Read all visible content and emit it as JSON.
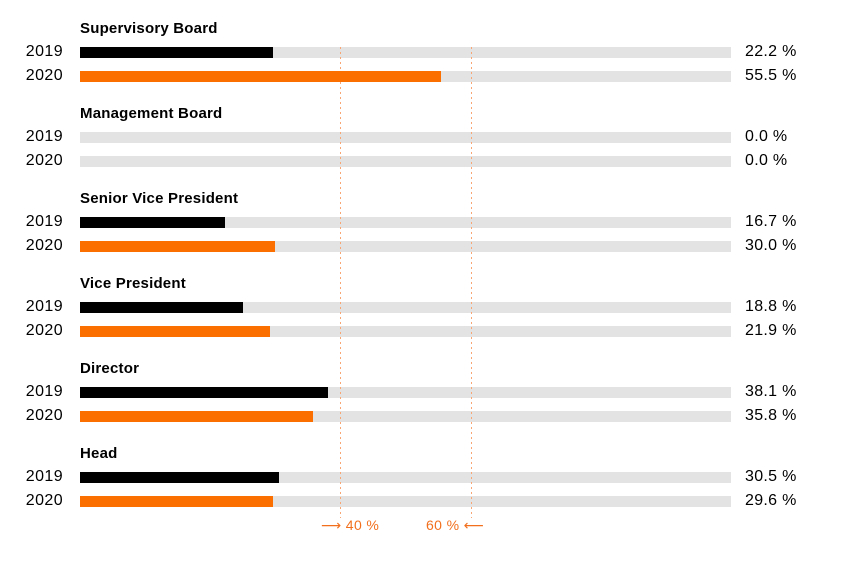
{
  "chart_data": {
    "type": "bar",
    "orientation": "horizontal",
    "title": "",
    "unit": "%",
    "xlim": [
      0,
      100
    ],
    "grid": false,
    "legend_position": "none",
    "categories": [
      "Supervisory Board",
      "Management Board",
      "Senior Vice President",
      "Vice President",
      "Director",
      "Head"
    ],
    "series": [
      {
        "name": "2019",
        "values": [
          22.2,
          0.0,
          16.7,
          18.8,
          38.1,
          30.5
        ]
      },
      {
        "name": "2020",
        "values": [
          55.5,
          0.0,
          30.0,
          21.9,
          35.8,
          29.6
        ]
      }
    ],
    "groups": [
      {
        "title": "Supervisory Board",
        "rows": [
          {
            "year": "2019",
            "value": 22.2,
            "display": "22.2 %",
            "bar_pct": 29.6
          },
          {
            "year": "2020",
            "value": 55.5,
            "display": "55.5 %",
            "bar_pct": 55.5
          }
        ]
      },
      {
        "title": "Management Board",
        "rows": [
          {
            "year": "2019",
            "value": 0.0,
            "display": "0.0 %",
            "bar_pct": 0
          },
          {
            "year": "2020",
            "value": 0.0,
            "display": "0.0 %",
            "bar_pct": 0
          }
        ]
      },
      {
        "title": "Senior Vice President",
        "rows": [
          {
            "year": "2019",
            "value": 16.7,
            "display": "16.7 %",
            "bar_pct": 22.3
          },
          {
            "year": "2020",
            "value": 30.0,
            "display": "30.0 %",
            "bar_pct": 30.0
          }
        ]
      },
      {
        "title": "Vice President",
        "rows": [
          {
            "year": "2019",
            "value": 18.8,
            "display": "18.8 %",
            "bar_pct": 25.1
          },
          {
            "year": "2020",
            "value": 21.9,
            "display": "21.9 %",
            "bar_pct": 29.2
          }
        ]
      },
      {
        "title": "Director",
        "rows": [
          {
            "year": "2019",
            "value": 38.1,
            "display": "38.1 %",
            "bar_pct": 38.1
          },
          {
            "year": "2020",
            "value": 35.8,
            "display": "35.8 %",
            "bar_pct": 35.8
          }
        ]
      },
      {
        "title": "Head",
        "rows": [
          {
            "year": "2019",
            "value": 30.5,
            "display": "30.5 %",
            "bar_pct": 30.5
          },
          {
            "year": "2020",
            "value": 29.6,
            "display": "29.6 %",
            "bar_pct": 29.6
          }
        ]
      }
    ],
    "reference_lines": [
      40,
      60
    ],
    "axis": {
      "left_marker": "⟶ 40 %",
      "right_marker": "60 % ⟵"
    },
    "colors": {
      "bar_2019": "#000000",
      "bar_2020": "#FB6E00",
      "track": "#E3E3E3",
      "reference_line": "#F9A473",
      "reference_text": "#F2701D",
      "text": "#000000",
      "background": "#FFFFFF"
    }
  }
}
